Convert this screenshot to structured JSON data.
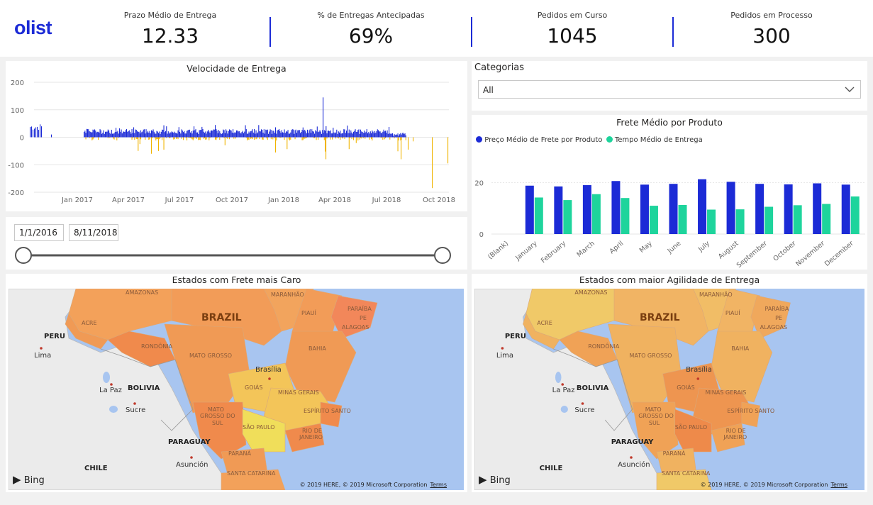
{
  "app": {
    "logo": "olist"
  },
  "kpis": [
    {
      "label": "Prazo Médio de Entrega",
      "value": "12.33"
    },
    {
      "label": "% de Entregas Antecipadas",
      "value": "69%"
    },
    {
      "label": "Pedidos em Curso",
      "value": "1045"
    },
    {
      "label": "Pedidos em Processo",
      "value": "300"
    }
  ],
  "colors": {
    "accent": "#1c2bd6",
    "negative": "#f0b400",
    "teal": "#1ed49c"
  },
  "speed_chart": {
    "chart_data": {
      "type": "bar",
      "title": "Velocidade de Entrega",
      "y_ticks": [
        "200",
        "100",
        "0",
        "-100",
        "-200"
      ],
      "ylim": [
        -200,
        200
      ],
      "x_ticks": [
        "Jan 2017",
        "Apr 2017",
        "Jul 2017",
        "Oct 2017",
        "Jan 2018",
        "Apr 2018",
        "Jul 2018",
        "Oct 2018"
      ],
      "note_values": "daily bars, positive ~10-40 (blue), negative ~ -5 to -60 (yellow), peak ~145 near Mar 2018, min ~ -185 near Oct 2018"
    }
  },
  "categories": {
    "title": "Categorias",
    "selected": "All"
  },
  "date_slicer": {
    "start": "1/1/2016",
    "end": "8/11/2018"
  },
  "freight_chart": {
    "chart_data": {
      "type": "bar",
      "title": "Frete Médio por Produto",
      "categories": [
        "(Blank)",
        "January",
        "February",
        "March",
        "April",
        "May",
        "June",
        "July",
        "August",
        "September",
        "October",
        "November",
        "December"
      ],
      "series": [
        {
          "name": "Preço Médio de Frete por Produto",
          "values": [
            0,
            18.8,
            18.5,
            19.0,
            20.6,
            19.2,
            19.5,
            21.3,
            20.3,
            19.5,
            19.3,
            19.7,
            19.2
          ]
        },
        {
          "name": "Tempo Médio de Entrega",
          "values": [
            0,
            14.2,
            13.2,
            15.5,
            14.0,
            11.0,
            11.3,
            9.5,
            9.6,
            10.6,
            11.2,
            11.7,
            14.6
          ]
        }
      ],
      "y_ticks": [
        "20",
        "0"
      ],
      "ylim": [
        0,
        27
      ],
      "legend": "top-left"
    }
  },
  "map_left": {
    "title": "Estados com Frete mais Caro",
    "labels": {
      "brazil": "BRAZIL",
      "peru": "PERU",
      "bolivia": "BOLIVIA",
      "paraguay": "PARAGUAY",
      "chile": "CHILE",
      "lima": "Lima",
      "lapaz": "La Paz",
      "sucre": "Sucre",
      "asuncion": "Asunción",
      "brasilia": "Brasília",
      "amazonas": "AMAZONAS",
      "maranhao": "MARANHÃO",
      "piaui": "PIAUÍ",
      "paraiba": "PARAÍBA",
      "pe": "PE",
      "alagoas": "ALAGOAS",
      "acre": "ACRE",
      "rondonia": "RONDÔNIA",
      "matogrosso": "MATO GROSSO",
      "bahia": "BAHIA",
      "goias": "GOIÁS",
      "minas": "MINAS GERAIS",
      "mato": "MATO",
      "grossodo": "GROSSO DO",
      "sul": "SUL",
      "espirito": "ESPÍRITO SANTO",
      "saopaulo": "SÃO PAULO",
      "rio": "RIO DE",
      "janeiro": "JANEIRO",
      "parana": "PARANÁ",
      "santacatarina": "SANTA CATARINA",
      "bing": "Bing",
      "credit": "© 2019 HERE, © 2019 Microsoft Corporation",
      "terms": "Terms"
    }
  },
  "map_right": {
    "title": "Estados com maior Agilidade de Entrega"
  }
}
